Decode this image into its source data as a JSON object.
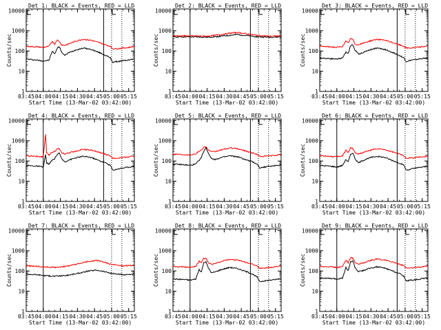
{
  "chart_data": {
    "type": "line",
    "yscale": "log",
    "ylim": [
      1,
      12000
    ],
    "xlim": [
      "03:45",
      "05:20"
    ],
    "ylabel": "Counts/sec",
    "xlabel": "Start Time (13-Mar-02 03:42:00)",
    "y_ticks": [
      "1",
      "10",
      "100",
      "1000",
      "10000"
    ],
    "x_ticks": [
      "03:45",
      "04:00",
      "04:15",
      "04:30",
      "04:45",
      "05:00",
      "05:15"
    ],
    "colors": {
      "events": "#000000",
      "lld": "#ff0000"
    },
    "panels": [
      {
        "title": "Det 1: BLACK = Events, RED = LLD",
        "vlines_solid": [
          "04:00",
          "04:53"
        ],
        "vlines_dotted": [
          "05:00",
          "05:09"
        ],
        "series": [
          {
            "name": "Events",
            "x": [
              "03:45",
              "03:55",
              "04:00",
              "04:05",
              "04:08",
              "04:10",
              "04:12",
              "04:14",
              "04:16",
              "04:19",
              "04:22",
              "04:28",
              "04:35",
              "04:42",
              "04:50",
              "04:55",
              "04:59",
              "05:01",
              "05:05",
              "05:10",
              "05:15",
              "05:20"
            ],
            "y": [
              40,
              35,
              32,
              35,
              100,
              70,
              130,
              170,
              90,
              60,
              80,
              110,
              140,
              120,
              80,
              60,
              45,
              28,
              30,
              33,
              36,
              40
            ]
          },
          {
            "name": "LLD",
            "x": [
              "03:45",
              "03:55",
              "04:00",
              "04:05",
              "04:08",
              "04:10",
              "04:12",
              "04:14",
              "04:16",
              "04:19",
              "04:22",
              "04:28",
              "04:35",
              "04:42",
              "04:50",
              "04:55",
              "04:59",
              "05:01",
              "05:05",
              "05:10",
              "05:15",
              "05:20"
            ],
            "y": [
              170,
              160,
              150,
              170,
              300,
              220,
              350,
              300,
              200,
              190,
              220,
              300,
              380,
              340,
              250,
              200,
              170,
              130,
              130,
              140,
              150,
              170
            ]
          }
        ]
      },
      {
        "title": "Det 2: BLACK = Events, RED = LLD",
        "vlines_solid": [
          "04:00",
          "04:53"
        ],
        "vlines_dotted": [
          "05:00",
          "05:09"
        ],
        "series": [
          {
            "name": "Events",
            "x": [
              "03:45",
              "04:00",
              "04:15",
              "04:25",
              "04:35",
              "04:42",
              "04:50",
              "05:00",
              "05:10",
              "05:20"
            ],
            "y": [
              500,
              500,
              480,
              520,
              600,
              650,
              580,
              500,
              480,
              500
            ]
          },
          {
            "name": "LLD",
            "x": [
              "03:45",
              "04:00",
              "04:15",
              "04:25",
              "04:35",
              "04:42",
              "04:50",
              "05:00",
              "05:10",
              "05:20"
            ],
            "y": [
              560,
              560,
              540,
              620,
              760,
              820,
              700,
              580,
              540,
              560
            ]
          }
        ]
      },
      {
        "title": "Det 3: BLACK = Events, RED = LLD",
        "vlines_solid": [
          "04:53"
        ],
        "vlines_dotted": [
          "05:00",
          "05:09"
        ],
        "series": [
          {
            "name": "Events",
            "x": [
              "03:45",
              "03:55",
              "04:00",
              "04:05",
              "04:08",
              "04:10",
              "04:12",
              "04:14",
              "04:16",
              "04:19",
              "04:22",
              "04:28",
              "04:35",
              "04:42",
              "04:50",
              "04:55",
              "04:59",
              "05:01",
              "05:05",
              "05:10",
              "05:15",
              "05:20"
            ],
            "y": [
              45,
              42,
              40,
              45,
              90,
              75,
              180,
              200,
              110,
              70,
              80,
              110,
              140,
              120,
              80,
              60,
              45,
              30,
              35,
              38,
              42,
              45
            ]
          },
          {
            "name": "LLD",
            "x": [
              "03:45",
              "03:55",
              "04:00",
              "04:05",
              "04:08",
              "04:10",
              "04:12",
              "04:14",
              "04:16",
              "04:19",
              "04:22",
              "04:28",
              "04:35",
              "04:42",
              "04:50",
              "04:55",
              "04:59",
              "05:01",
              "05:05",
              "05:10",
              "05:15",
              "05:20"
            ],
            "y": [
              170,
              160,
              150,
              170,
              300,
              250,
              400,
              380,
              220,
              200,
              230,
              300,
              380,
              340,
              250,
              200,
              170,
              140,
              140,
              150,
              160,
              180
            ]
          }
        ]
      },
      {
        "title": "Det 4: BLACK = Events, RED = LLD",
        "vlines_solid": [
          "04:00",
          "04:53"
        ],
        "vlines_dotted": [
          "05:00",
          "05:09"
        ],
        "series": [
          {
            "name": "Events",
            "x": [
              "03:45",
              "03:55",
              "04:00",
              "04:02",
              "04:03",
              "04:05",
              "04:08",
              "04:10",
              "04:12",
              "04:14",
              "04:16",
              "04:19",
              "04:22",
              "04:28",
              "04:35",
              "04:42",
              "04:50",
              "04:55",
              "04:59",
              "05:01",
              "05:05",
              "05:10",
              "05:15",
              "05:20"
            ],
            "y": [
              60,
              55,
              50,
              200,
              80,
              70,
              110,
              130,
              200,
              250,
              130,
              90,
              110,
              140,
              170,
              150,
              100,
              80,
              60,
              35,
              40,
              45,
              50,
              55
            ]
          },
          {
            "name": "LLD",
            "x": [
              "03:45",
              "03:55",
              "04:00",
              "04:02",
              "04:03",
              "04:05",
              "04:08",
              "04:10",
              "04:12",
              "04:14",
              "04:16",
              "04:19",
              "04:22",
              "04:28",
              "04:35",
              "04:42",
              "04:50",
              "04:55",
              "04:59",
              "05:01",
              "05:05",
              "05:10",
              "05:15",
              "05:20"
            ],
            "y": [
              180,
              170,
              160,
              2000,
              250,
              200,
              280,
              300,
              380,
              400,
              260,
              220,
              250,
              300,
              380,
              340,
              260,
              210,
              180,
              140,
              140,
              150,
              160,
              180
            ]
          }
        ]
      },
      {
        "title": "Det 5: BLACK = Events, RED = LLD",
        "vlines_solid": [
          "04:00",
          "04:53"
        ],
        "vlines_dotted": [
          "05:00",
          "05:09"
        ],
        "series": [
          {
            "name": "Events",
            "x": [
              "03:45",
              "03:55",
              "04:00",
              "04:05",
              "04:08",
              "04:10",
              "04:12",
              "04:14",
              "04:16",
              "04:19",
              "04:22",
              "04:28",
              "04:35",
              "04:42",
              "04:50",
              "04:55",
              "04:59",
              "05:01",
              "05:05",
              "05:10",
              "05:15",
              "05:20"
            ],
            "y": [
              70,
              65,
              60,
              70,
              110,
              150,
              300,
              450,
              250,
              130,
              120,
              150,
              180,
              160,
              110,
              90,
              70,
              45,
              50,
              55,
              60,
              65
            ]
          },
          {
            "name": "LLD",
            "x": [
              "03:45",
              "03:55",
              "04:00",
              "04:05",
              "04:08",
              "04:10",
              "04:12",
              "04:14",
              "04:16",
              "04:19",
              "04:22",
              "04:28",
              "04:35",
              "04:42",
              "04:50",
              "04:55",
              "04:59",
              "05:01",
              "05:05",
              "05:10",
              "05:15",
              "05:20"
            ],
            "y": [
              220,
              210,
              200,
              230,
              300,
              350,
              480,
              520,
              350,
              280,
              290,
              360,
              440,
              400,
              300,
              250,
              210,
              170,
              170,
              180,
              190,
              210
            ]
          }
        ]
      },
      {
        "title": "Det 6: BLACK = Events, RED = LLD",
        "vlines_solid": [
          "04:00",
          "04:53"
        ],
        "vlines_dotted": [
          "05:00",
          "05:09"
        ],
        "series": [
          {
            "name": "Events",
            "x": [
              "03:45",
              "03:55",
              "04:00",
              "04:05",
              "04:08",
              "04:10",
              "04:12",
              "04:14",
              "04:16",
              "04:19",
              "04:22",
              "04:28",
              "04:35",
              "04:42",
              "04:50",
              "04:55",
              "04:59",
              "05:01",
              "05:05",
              "05:10",
              "05:15",
              "05:20"
            ],
            "y": [
              60,
              55,
              50,
              60,
              120,
              90,
              200,
              260,
              130,
              80,
              100,
              140,
              170,
              150,
              100,
              80,
              60,
              35,
              40,
              45,
              50,
              55
            ]
          },
          {
            "name": "LLD",
            "x": [
              "03:45",
              "03:55",
              "04:00",
              "04:05",
              "04:08",
              "04:10",
              "04:12",
              "04:14",
              "04:16",
              "04:19",
              "04:22",
              "04:28",
              "04:35",
              "04:42",
              "04:50",
              "04:55",
              "04:59",
              "05:01",
              "05:05",
              "05:10",
              "05:15",
              "05:20"
            ],
            "y": [
              180,
              170,
              160,
              180,
              350,
              250,
              450,
              420,
              260,
              220,
              250,
              320,
              400,
              360,
              270,
              220,
              180,
              140,
              140,
              150,
              160,
              180
            ]
          }
        ]
      },
      {
        "title": "Det 7: BLACK = Events, RED = LLD",
        "vlines_solid": [
          "04:00"
        ],
        "vlines_dotted": [
          "05:00",
          "05:09"
        ],
        "series": [
          {
            "name": "Events",
            "x": [
              "03:45",
              "03:55",
              "04:00",
              "04:10",
              "04:20",
              "04:30",
              "04:40",
              "04:47",
              "04:55",
              "05:00",
              "05:10",
              "05:20"
            ],
            "y": [
              70,
              65,
              60,
              55,
              60,
              75,
              100,
              110,
              90,
              75,
              65,
              70
            ]
          },
          {
            "name": "LLD",
            "x": [
              "03:45",
              "03:55",
              "04:00",
              "04:10",
              "04:20",
              "04:30",
              "04:40",
              "04:47",
              "04:55",
              "05:00",
              "05:10",
              "05:20"
            ],
            "y": [
              180,
              170,
              160,
              150,
              170,
              220,
              300,
              330,
              260,
              210,
              180,
              190
            ]
          }
        ]
      },
      {
        "title": "Det 8: BLACK = Events, RED = LLD",
        "vlines_solid": [
          "04:00",
          "04:53"
        ],
        "vlines_dotted": [
          "05:00",
          "05:09"
        ],
        "series": [
          {
            "name": "Events",
            "x": [
              "03:45",
              "03:55",
              "04:00",
              "04:05",
              "04:08",
              "04:10",
              "04:12",
              "04:14",
              "04:16",
              "04:19",
              "04:22",
              "04:28",
              "04:35",
              "04:42",
              "04:50",
              "04:55",
              "04:59",
              "05:01",
              "05:05",
              "05:10",
              "05:15",
              "05:20"
            ],
            "y": [
              40,
              38,
              35,
              40,
              120,
              90,
              250,
              300,
              140,
              80,
              90,
              120,
              150,
              130,
              90,
              70,
              50,
              30,
              32,
              35,
              38,
              42
            ]
          },
          {
            "name": "LLD",
            "x": [
              "03:45",
              "03:55",
              "04:00",
              "04:05",
              "04:08",
              "04:10",
              "04:12",
              "04:14",
              "04:16",
              "04:19",
              "04:22",
              "04:28",
              "04:35",
              "04:42",
              "04:50",
              "04:55",
              "04:59",
              "05:01",
              "05:05",
              "05:10",
              "05:15",
              "05:20"
            ],
            "y": [
              170,
              160,
              150,
              170,
              300,
              250,
              420,
              420,
              260,
              210,
              230,
              300,
              380,
              340,
              260,
              210,
              170,
              140,
              140,
              150,
              160,
              180
            ]
          }
        ]
      },
      {
        "title": "Det 9: BLACK = Events, RED = LLD",
        "vlines_solid": [
          "04:00",
          "04:53"
        ],
        "vlines_dotted": [
          "05:00",
          "05:09"
        ],
        "series": [
          {
            "name": "Events",
            "x": [
              "03:45",
              "03:55",
              "04:00",
              "04:05",
              "04:08",
              "04:10",
              "04:12",
              "04:14",
              "04:16",
              "04:19",
              "04:22",
              "04:28",
              "04:35",
              "04:42",
              "04:50",
              "04:55",
              "04:59",
              "05:01",
              "05:05",
              "05:10",
              "05:15",
              "05:20"
            ],
            "y": [
              45,
              42,
              40,
              45,
              150,
              100,
              280,
              320,
              150,
              90,
              100,
              130,
              160,
              140,
              95,
              75,
              55,
              32,
              35,
              38,
              42,
              45
            ]
          },
          {
            "name": "LLD",
            "x": [
              "03:45",
              "03:55",
              "04:00",
              "04:05",
              "04:08",
              "04:10",
              "04:12",
              "04:14",
              "04:16",
              "04:19",
              "04:22",
              "04:28",
              "04:35",
              "04:42",
              "04:50",
              "04:55",
              "04:59",
              "05:01",
              "05:05",
              "05:10",
              "05:15",
              "05:20"
            ],
            "y": [
              170,
              160,
              150,
              170,
              350,
              260,
              450,
              440,
              270,
              220,
              240,
              310,
              390,
              350,
              270,
              220,
              180,
              140,
              140,
              150,
              160,
              180
            ]
          }
        ]
      }
    ]
  }
}
